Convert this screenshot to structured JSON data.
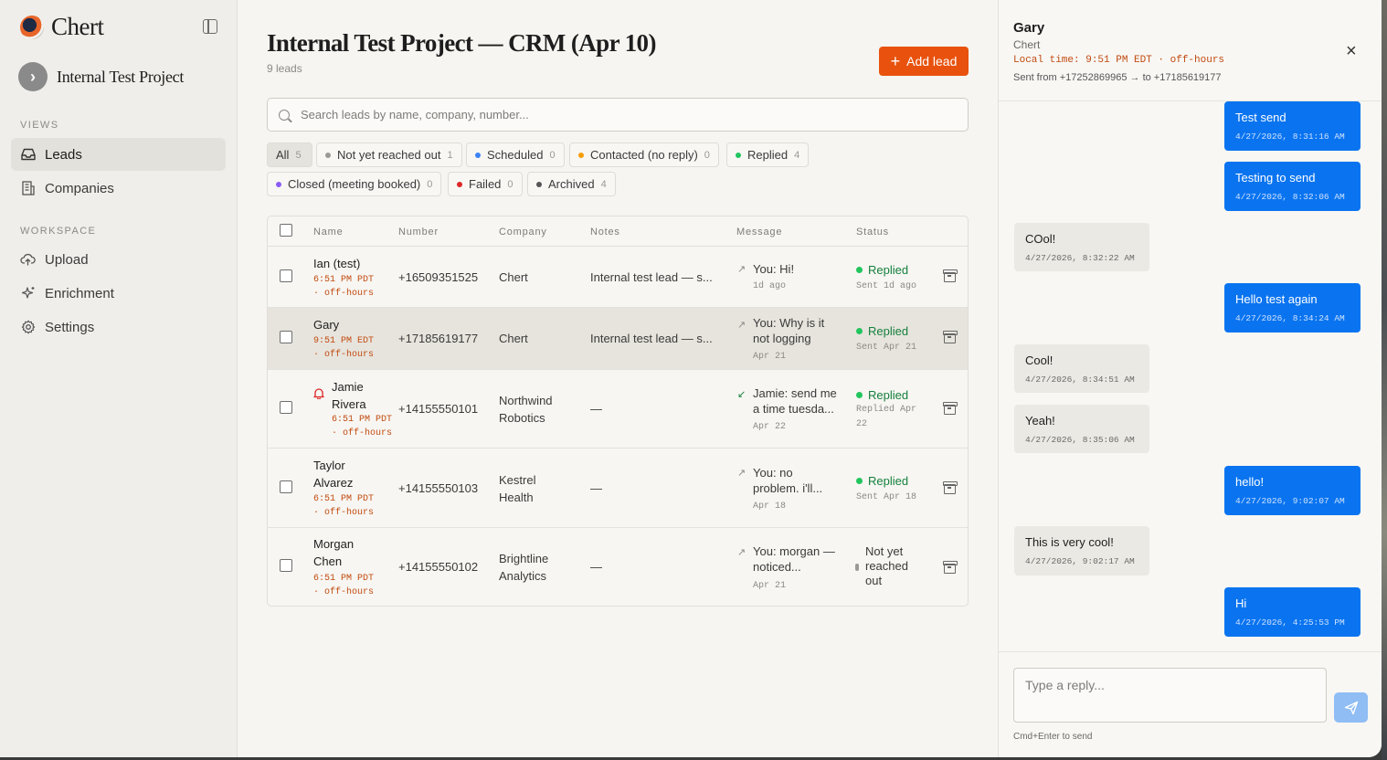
{
  "sidebar": {
    "brand": "Chert",
    "project": "Internal Test Project",
    "views_label": "VIEWS",
    "workspace_label": "WORKSPACE",
    "views": [
      {
        "label": "Leads",
        "icon": "inbox-icon"
      },
      {
        "label": "Companies",
        "icon": "building-icon"
      }
    ],
    "workspace": [
      {
        "label": "Upload",
        "icon": "cloud-upload-icon"
      },
      {
        "label": "Enrichment",
        "icon": "sparkle-icon"
      },
      {
        "label": "Settings",
        "icon": "gear-icon"
      }
    ]
  },
  "main": {
    "title": "Internal Test Project — CRM (Apr 10)",
    "subtitle": "9 leads",
    "add_label": "Add lead",
    "search_placeholder": "Search leads by name, company, number...",
    "filters": [
      {
        "label": "All",
        "count": "5",
        "color": ""
      },
      {
        "label": "Not yet reached out",
        "count": "1",
        "color": "#9a9995"
      },
      {
        "label": "Scheduled",
        "count": "0",
        "color": "#3b82f6"
      },
      {
        "label": "Contacted (no reply)",
        "count": "0",
        "color": "#f59e0b"
      },
      {
        "label": "Replied",
        "count": "4",
        "color": "#22c55e"
      },
      {
        "label": "Closed (meeting booked)",
        "count": "0",
        "color": "#8b5cf6"
      },
      {
        "label": "Failed",
        "count": "0",
        "color": "#dc2626"
      },
      {
        "label": "Archived",
        "count": "4",
        "color": "#555555"
      }
    ],
    "columns": [
      "Name",
      "Number",
      "Company",
      "Notes",
      "Message",
      "Status"
    ],
    "rows": [
      {
        "name": "Ian (test)",
        "tz": "6:51 PM PDT",
        "tz2": "· off-hours",
        "number": "+16509351525",
        "company": "Chert",
        "notes": "Internal test lead — s...",
        "msg": "You: Hi!",
        "msg_meta": "1d ago",
        "status": "Replied",
        "status_meta": "Sent 1d ago"
      },
      {
        "name": "Gary",
        "tz": "9:51 PM EDT",
        "tz2": "· off-hours",
        "number": "+17185619177",
        "company": "Chert",
        "notes": "Internal test lead — s...",
        "msg": "You: Why is it not logging",
        "msg_meta": "Apr 21",
        "status": "Replied",
        "status_meta": "Sent Apr 21"
      },
      {
        "name": "Jamie Rivera",
        "tz": "6:51 PM PDT",
        "tz2": "· off-hours",
        "number": "+14155550101",
        "company": "Northwind Robotics",
        "notes": "—",
        "msg": "Jamie: send me a time tuesda...",
        "msg_meta": "Apr 22",
        "status": "Replied",
        "status_meta": "Replied Apr 22"
      },
      {
        "name": "Taylor Alvarez",
        "tz": "6:51 PM PDT",
        "tz2": "· off-hours",
        "number": "+14155550103",
        "company": "Kestrel Health",
        "notes": "—",
        "msg": "You: no problem. i'll...",
        "msg_meta": "Apr 18",
        "status": "Replied",
        "status_meta": "Sent Apr 18"
      },
      {
        "name": "Morgan Chen",
        "tz": "6:51 PM PDT",
        "tz2": "· off-hours",
        "number": "+14155550102",
        "company": "Brightline Analytics",
        "notes": "—",
        "msg": "You: morgan — noticed...",
        "msg_meta": "Apr 21",
        "status": "Not yet reached out",
        "status_meta": ""
      }
    ]
  },
  "panel": {
    "name": "Gary",
    "company": "Chert",
    "local_time": "Local time: 9:51 PM EDT · off-hours",
    "sent": "Sent from +17252869965 → to +17185619177",
    "messages": [
      {
        "dir": "out",
        "text": "Test send",
        "time": "4/27/2026, 8:31:16 AM"
      },
      {
        "dir": "out",
        "text": "Testing to send",
        "time": "4/27/2026, 8:32:06 AM"
      },
      {
        "dir": "in",
        "text": "COol!",
        "time": "4/27/2026, 8:32:22 AM"
      },
      {
        "dir": "out",
        "text": "Hello test again",
        "time": "4/27/2026, 8:34:24 AM"
      },
      {
        "dir": "in",
        "text": "Cool!",
        "time": "4/27/2026, 8:34:51 AM"
      },
      {
        "dir": "in",
        "text": "Yeah!",
        "time": "4/27/2026, 8:35:06 AM"
      },
      {
        "dir": "out",
        "text": "hello!",
        "time": "4/27/2026, 9:02:07 AM"
      },
      {
        "dir": "in",
        "text": "This is very cool!",
        "time": "4/27/2026, 9:02:17 AM"
      },
      {
        "dir": "out",
        "text": "Hi",
        "time": "4/27/2026, 4:25:53 PM"
      }
    ],
    "reply_placeholder": "Type a reply...",
    "hint": "Cmd+Enter to send"
  }
}
